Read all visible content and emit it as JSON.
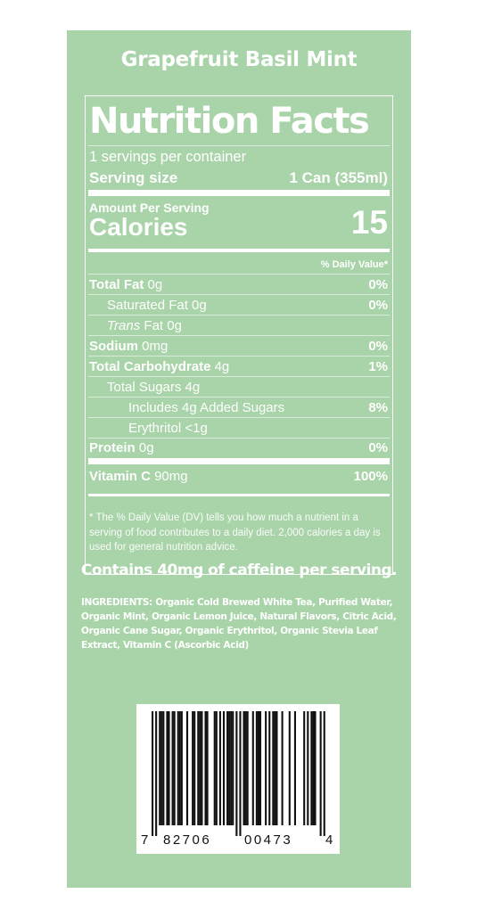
{
  "product_name": "Grapefruit Basil Mint",
  "facts": {
    "title": "Nutrition Facts",
    "servings_per_container": "1 servings per container",
    "serving_size_label": "Serving size",
    "serving_size_value": "1 Can (355ml)",
    "amount_per_serving": "Amount Per Serving",
    "calories_label": "Calories",
    "calories_value": "15",
    "daily_value_header": "% Daily Value*",
    "total_fat": {
      "label": "Total Fat",
      "amount": " 0g",
      "dv": "0%"
    },
    "saturated_fat": {
      "label": "Saturated Fat 0g",
      "dv": "0%"
    },
    "trans_fat": {
      "label": "Trans",
      "amount": " Fat 0g"
    },
    "sodium": {
      "label": "Sodium",
      "amount": " 0mg",
      "dv": "0%"
    },
    "total_carb": {
      "label": "Total Carbohydrate",
      "amount": " 4g",
      "dv": "1%"
    },
    "total_sugars": {
      "label": "Total Sugars 4g"
    },
    "added_sugars": {
      "label": "Includes 4g Added Sugars",
      "dv": "8%"
    },
    "erythritol": {
      "label": "Erythritol <1g"
    },
    "protein": {
      "label": "Protein",
      "amount": " 0g",
      "dv": "0%"
    },
    "vitamin_c": {
      "label": "Vitamin C",
      "amount": " 90mg",
      "dv": "100%"
    },
    "footnote": "* The % Daily Value (DV) tells you how much a nutrient in a serving of food contributes to a daily diet. 2,000 calories a day is used for general nutrition advice."
  },
  "caffeine_statement": "Contains 40mg of caffeine per serving.",
  "ingredients": {
    "label": "INGREDIENTS:",
    "text": " Organic Cold Brewed White Tea, Purified Water, Organic Mint,  Organic Lemon Juice, Natural Flavors, Citric Acid, Organic Cane Sugar, Organic Erythritol, Organic Stevia Leaf Extract, Vitamin C (Ascorbic Acid)"
  },
  "barcode": {
    "digits": [
      "7",
      "82706",
      "00473",
      "4"
    ]
  },
  "colors": {
    "panel_background": "#a9d3a9",
    "text": "#ffffff",
    "barcode_bars": "#111111"
  }
}
